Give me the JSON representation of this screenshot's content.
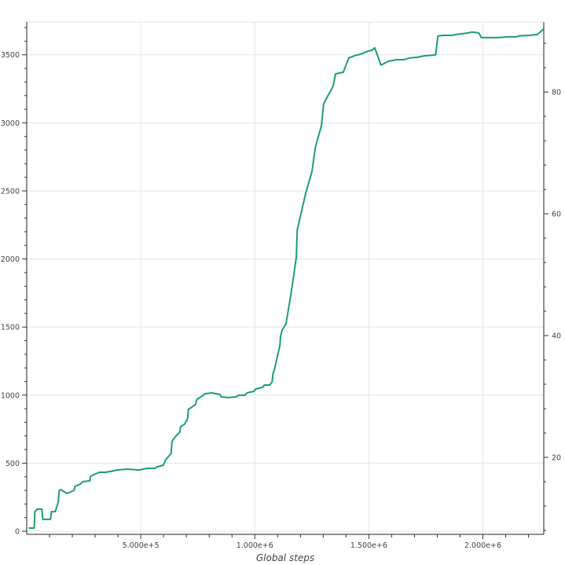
{
  "chart_data": {
    "type": "line",
    "title": "",
    "xlabel": "Global steps",
    "ylabel": "",
    "y2label": "",
    "xlim": [
      0,
      2267000
    ],
    "ylim": [
      -23,
      3741
    ],
    "y2lim": [
      7.35,
      91.5
    ],
    "grid": true,
    "line_color": "#1b9e77",
    "x_ticks": [
      500000,
      1000000,
      1500000,
      2000000
    ],
    "x_tick_labels": [
      "5.000e+5",
      "1.000e+6",
      "1.500e+6",
      "2.000e+6"
    ],
    "y_ticks": [
      0,
      500,
      1000,
      1500,
      2000,
      2500,
      3000,
      3500
    ],
    "y_tick_labels": [
      "0",
      "500",
      "1000",
      "1500",
      "2000",
      "2500",
      "3000",
      "3500"
    ],
    "y2_ticks": [
      20,
      40,
      60,
      80
    ],
    "y2_tick_labels": [
      "20",
      "40",
      "60",
      "80"
    ],
    "series": [
      {
        "x": [
          9000,
          32600,
          36000,
          46300,
          66900,
          70400,
          104700,
          108100,
          125300,
          139000,
          142400,
          149300,
          176700,
          207600,
          211100,
          235100,
          245400,
          276300,
          279700,
          303700,
          317500,
          345000,
          365500,
          386100,
          393000,
          441000,
          492500,
          526800,
          561100,
          571400,
          598900,
          609200,
          633200,
          636600,
          650400,
          671000,
          674400,
          691500,
          705300,
          708700,
          739600,
          746500,
          773900,
          780800,
          811700,
          846000,
          852900,
          883800,
          918100,
          928400,
          955900,
          966200,
          997100,
          1004000,
          1034700,
          1041600,
          1065600,
          1075900,
          1079400,
          1086200,
          1100000,
          1110000,
          1113000,
          1120000,
          1137000,
          1158000,
          1172000,
          1182000,
          1186000,
          1223000,
          1251000,
          1265000,
          1292000,
          1302000,
          1343000,
          1354000,
          1388000,
          1412000,
          1436000,
          1464000,
          1498000,
          1515000,
          1526000,
          1553000,
          1587000,
          1622000,
          1653000,
          1677000,
          1711000,
          1745000,
          1793000,
          1803000,
          1827000,
          1865000,
          1883000,
          1937000,
          1951000,
          1982000,
          1993000,
          2061000,
          2109000,
          2147000,
          2156000,
          2201000,
          2239000,
          2267000
        ],
        "y": [
          23,
          23,
          144,
          162,
          162,
          87,
          87,
          144,
          144,
          219,
          300,
          306,
          277,
          300,
          329,
          346,
          364,
          370,
          404,
          422,
          433,
          433,
          439,
          445,
          450,
          456,
          450,
          462,
          462,
          473,
          485,
          525,
          572,
          658,
          693,
          728,
          768,
          785,
          826,
          895,
          930,
          970,
          999,
          1010,
          1016,
          1005,
          987,
          982,
          987,
          999,
          999,
          1016,
          1028,
          1045,
          1057,
          1074,
          1074,
          1097,
          1155,
          1189,
          1293,
          1363,
          1432,
          1478,
          1524,
          1738,
          1894,
          2015,
          2211,
          2483,
          2645,
          2818,
          2979,
          3141,
          3268,
          3360,
          3372,
          3476,
          3493,
          3505,
          3528,
          3534,
          3551,
          3424,
          3453,
          3464,
          3464,
          3476,
          3482,
          3493,
          3499,
          3638,
          3643,
          3643,
          3649,
          3661,
          3667,
          3661,
          3626,
          3626,
          3632,
          3632,
          3638,
          3643,
          3649,
          3690
        ]
      }
    ]
  }
}
